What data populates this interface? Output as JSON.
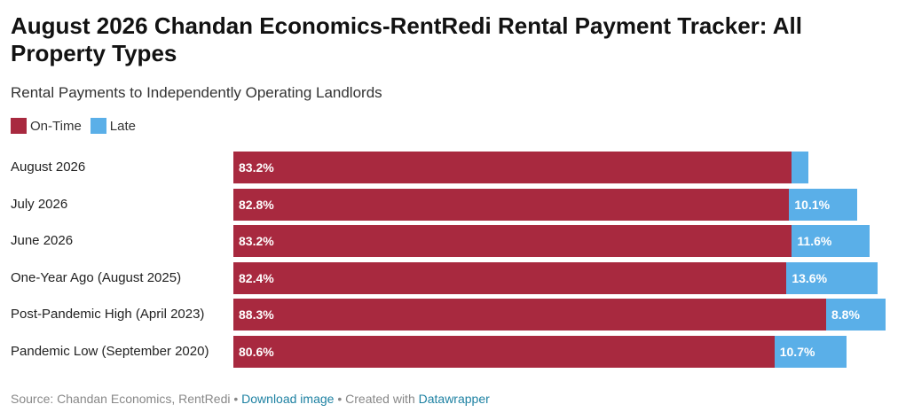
{
  "title": "August 2026 Chandan Economics-RentRedi Rental Payment Tracker: All Property Types",
  "subtitle": "Rental Payments to Independently Operating Landlords",
  "colors": {
    "on_time": "#a8293f",
    "late": "#5aafe8"
  },
  "legend": [
    {
      "label": "On-Time",
      "color": "#a8293f"
    },
    {
      "label": "Late",
      "color": "#5aafe8"
    }
  ],
  "chart_data": {
    "type": "bar",
    "orientation": "horizontal",
    "stacked": true,
    "categories": [
      "August 2026",
      "July 2026",
      "June 2026",
      "One-Year Ago (August 2025)",
      "Post-Pandemic High (April 2023)",
      "Pandemic Low (September 2020)"
    ],
    "series": [
      {
        "name": "On-Time",
        "values": [
          83.2,
          82.8,
          83.2,
          82.4,
          88.3,
          80.6
        ],
        "labels": [
          "83.2%",
          "82.8%",
          "83.2%",
          "82.4%",
          "88.3%",
          "80.6%"
        ]
      },
      {
        "name": "Late",
        "values": [
          2.5,
          10.1,
          11.6,
          13.6,
          8.8,
          10.7
        ],
        "labels": [
          "",
          "10.1%",
          "11.6%",
          "13.6%",
          "8.8%",
          "10.7%"
        ]
      }
    ],
    "xlim": [
      0,
      100
    ]
  },
  "footer": {
    "source": "Source: Chandan Economics, RentRedi",
    "sep1": " • ",
    "download": "Download image",
    "sep2": " • Created with ",
    "tool": "Datawrapper"
  }
}
